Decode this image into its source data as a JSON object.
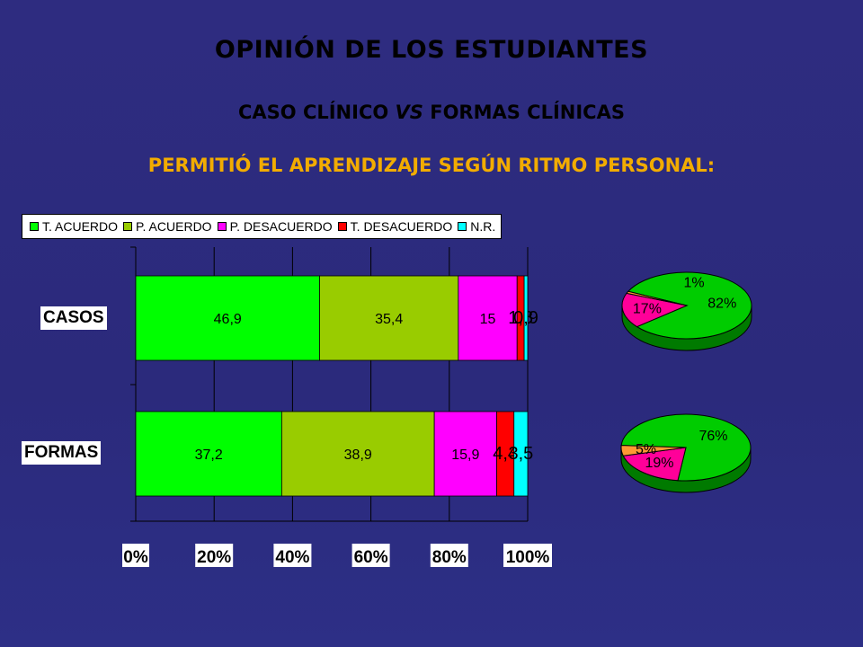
{
  "slide": {
    "title": "OPINIÓN DE LOS ESTUDIANTES",
    "subtitle_a": "CASO CLÍNICO ",
    "subtitle_vs": "VS",
    "subtitle_b": " FORMAS CLÍNICAS",
    "question": "PERMITIÓ EL APRENDIZAJE SEGÚN RITMO PERSONAL:"
  },
  "legend": [
    {
      "label": "T. ACUERDO",
      "color": "#00ff00"
    },
    {
      "label": "P. ACUERDO",
      "color": "#99cc00"
    },
    {
      "label": "P. DESACUERDO",
      "color": "#ff00ff"
    },
    {
      "label": "T. DESACUERDO",
      "color": "#ff0000"
    },
    {
      "label": "N.R.",
      "color": "#00ffff"
    }
  ],
  "chart_data": [
    {
      "type": "bar",
      "orientation": "horizontal",
      "stacked": "100%",
      "categories": [
        "CASOS",
        "FORMAS"
      ],
      "series": [
        {
          "name": "T. ACUERDO",
          "values": [
            46.9,
            37.2
          ],
          "labels": [
            "46,9",
            "37,2"
          ]
        },
        {
          "name": "P. ACUERDO",
          "values": [
            35.4,
            38.9
          ],
          "labels": [
            "35,4",
            "38,9"
          ]
        },
        {
          "name": "P. DESACUERDO",
          "values": [
            15,
            15.9
          ],
          "labels": [
            "15",
            "15,9"
          ]
        },
        {
          "name": "T. DESACUERDO",
          "values": [
            1.8,
            4.4
          ],
          "labels": [
            "1,8",
            "4,4"
          ]
        },
        {
          "name": "N.R.",
          "values": [
            0.9,
            3.5
          ],
          "labels": [
            "0,9",
            "3,5"
          ]
        }
      ],
      "xticks": [
        "0%",
        "20%",
        "40%",
        "60%",
        "80%",
        "100%"
      ],
      "xlim": [
        0,
        100
      ],
      "legend_position": "top"
    },
    {
      "type": "pie",
      "category": "CASOS",
      "slices": [
        {
          "value": 82,
          "label": "82%",
          "color": "#00cc00"
        },
        {
          "value": 17,
          "label": "17%",
          "color": "#ff0099"
        },
        {
          "value": 1,
          "label": "1%",
          "color": "#ff9933"
        }
      ]
    },
    {
      "type": "pie",
      "category": "FORMAS",
      "slices": [
        {
          "value": 76,
          "label": "76%",
          "color": "#00cc00"
        },
        {
          "value": 19,
          "label": "19%",
          "color": "#ff0099"
        },
        {
          "value": 5,
          "label": "5%",
          "color": "#ff9933"
        }
      ]
    }
  ]
}
